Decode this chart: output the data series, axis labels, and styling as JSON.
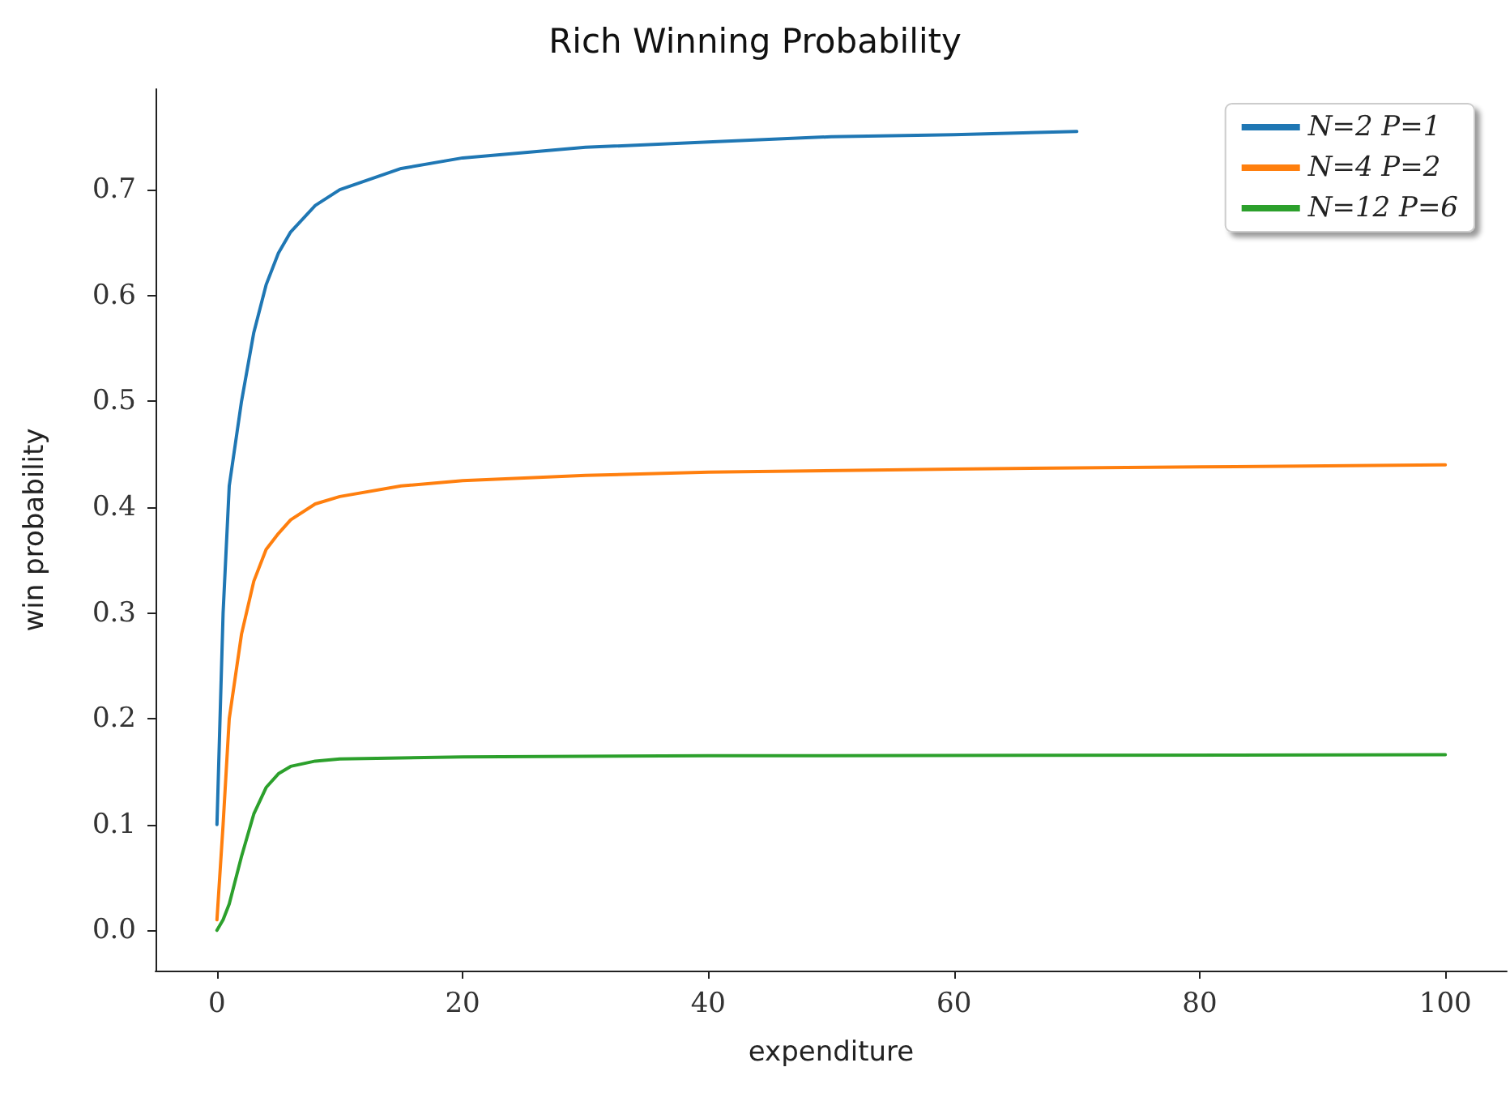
{
  "chart_data": {
    "type": "line",
    "title": "Rich Winning Probability",
    "xlabel": "expenditure",
    "ylabel": "win probability",
    "xlim": [
      -5,
      105
    ],
    "xticks": [
      0,
      20,
      40,
      60,
      80,
      100
    ],
    "ylim": [
      -0.038,
      0.795
    ],
    "yticks": [
      {
        "value": 0,
        "label": "0.0"
      },
      0.1,
      0.2,
      0.3,
      0.4,
      0.5,
      0.6,
      0.7
    ],
    "grid": false,
    "legend": "top right",
    "marker": "none",
    "line_style": "solid",
    "series": [
      {
        "name": "N=2 P=1",
        "color": "#1f77b4",
        "x": [
          0,
          0.5,
          1,
          2,
          3,
          4,
          5,
          6,
          8,
          10,
          15,
          20,
          30,
          40,
          50,
          60,
          70
        ],
        "values": [
          0.1,
          0.3,
          0.42,
          0.5,
          0.565,
          0.61,
          0.64,
          0.66,
          0.685,
          0.7,
          0.72,
          0.73,
          0.74,
          0.745,
          0.75,
          0.752,
          0.755
        ]
      },
      {
        "name": "N=4 P=2",
        "color": "#ff7f0e",
        "x": [
          0,
          0.5,
          1,
          2,
          3,
          4,
          5,
          6,
          8,
          10,
          15,
          20,
          30,
          40,
          60,
          80,
          100
        ],
        "values": [
          0.01,
          0.1,
          0.2,
          0.28,
          0.33,
          0.36,
          0.375,
          0.388,
          0.403,
          0.41,
          0.42,
          0.425,
          0.43,
          0.433,
          0.436,
          0.438,
          0.44
        ]
      },
      {
        "name": "N=12 P=6",
        "color": "#2ca02c",
        "x": [
          0,
          0.5,
          1,
          2,
          3,
          4,
          5,
          6,
          8,
          10,
          15,
          20,
          40,
          100
        ],
        "values": [
          0,
          0.01,
          0.025,
          0.07,
          0.11,
          0.135,
          0.148,
          0.155,
          0.16,
          0.162,
          0.163,
          0.164,
          0.165,
          0.166
        ]
      }
    ]
  }
}
